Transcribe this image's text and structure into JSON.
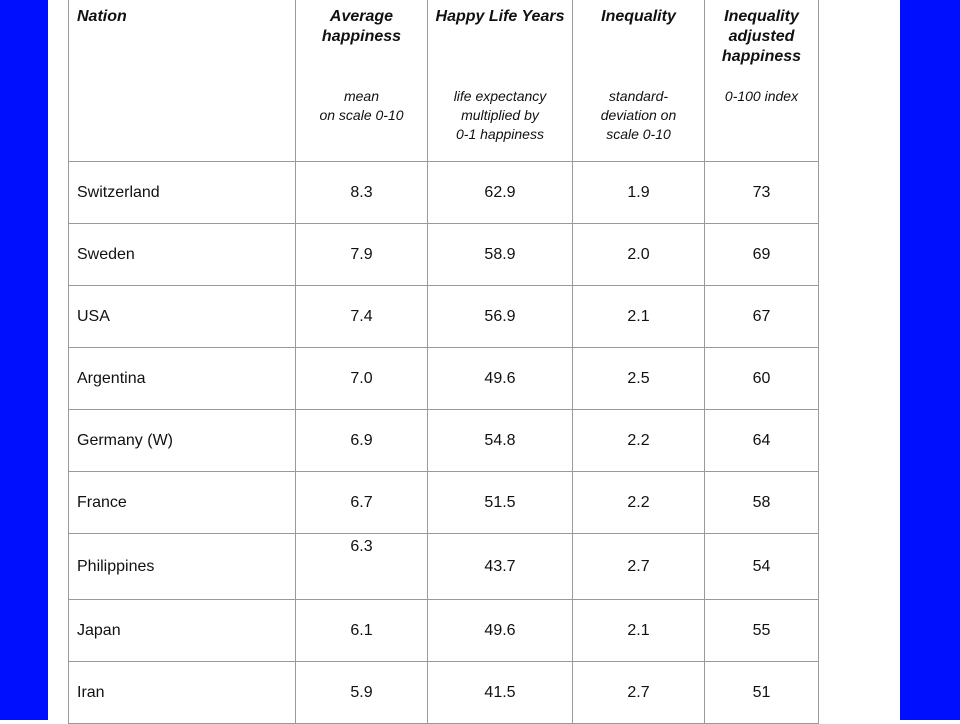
{
  "table": {
    "columns": [
      {
        "title": "Nation",
        "note": null
      },
      {
        "title": "Average happiness",
        "note": "mean\non scale 0-10"
      },
      {
        "title": "Happy Life Years",
        "note": "life expectancy\nmultiplied by\n0-1  happiness"
      },
      {
        "title": "Inequality",
        "note": "standard-\ndeviation on\nscale 0-10"
      },
      {
        "title": "Inequality adjusted happiness",
        "note": "0-100 index"
      }
    ],
    "rows": [
      [
        "Switzerland",
        "8.3",
        "62.9",
        "1.9",
        "73"
      ],
      [
        "Sweden",
        "7.9",
        "58.9",
        "2.0",
        "69"
      ],
      [
        "USA",
        "7.4",
        "56.9",
        "2.1",
        "67"
      ],
      [
        "Argentina",
        "7.0",
        "49.6",
        "2.5",
        "60"
      ],
      [
        "Germany (W)",
        "6.9",
        "54.8",
        "2.2",
        "64"
      ],
      [
        "France",
        "6.7",
        "51.5",
        "2.2",
        "58"
      ],
      [
        "Philippines",
        "6.3",
        "43.7",
        "2.7",
        "54"
      ],
      [
        "Japan",
        "6.1",
        "49.6",
        "2.1",
        "55"
      ],
      [
        "Iran",
        "5.9",
        "41.5",
        "2.7",
        "51"
      ]
    ]
  }
}
